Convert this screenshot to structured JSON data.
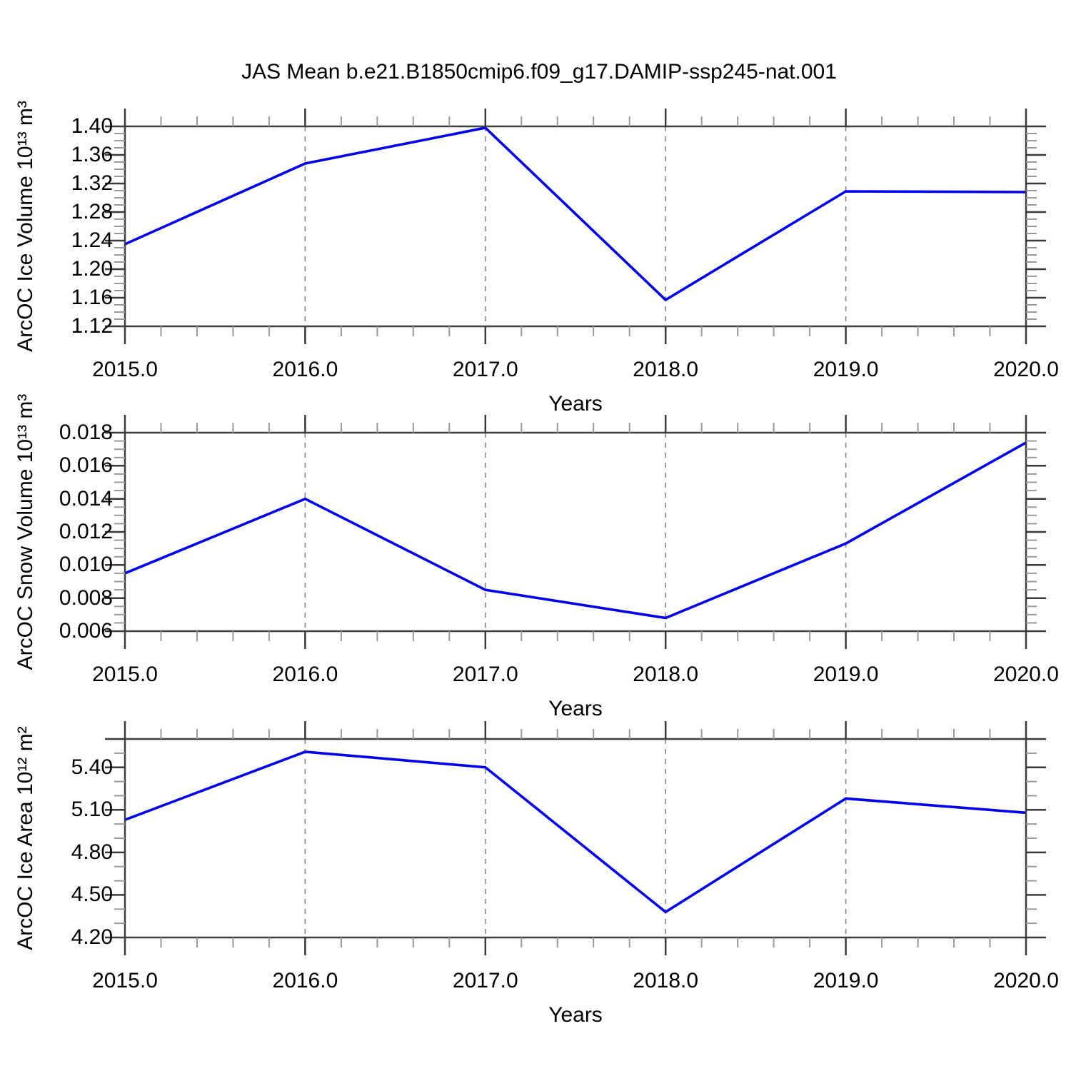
{
  "title": "JAS Mean b.e21.B1850cmip6.f09_g17.DAMIP-ssp245-nat.001",
  "line_color": "#0000f2",
  "chart_data": [
    {
      "type": "line",
      "ylabel": "ArcOC Ice Volume 10¹³ m³",
      "xlabel": "Years",
      "x": [
        2015,
        2016,
        2017,
        2018,
        2019,
        2020
      ],
      "values": [
        1.235,
        1.348,
        1.398,
        1.157,
        1.309,
        1.308
      ],
      "xlim": [
        2015,
        2020
      ],
      "ylim": [
        1.12,
        1.4
      ],
      "xtick_labels": [
        "2015.0",
        "2016.0",
        "2017.0",
        "2018.0",
        "2019.0",
        "2020.0"
      ],
      "ytick_labels": [
        "1.12",
        "1.16",
        "1.20",
        "1.24",
        "1.28",
        "1.32",
        "1.36",
        "1.40"
      ],
      "ytick_extra_unlabeled": [],
      "y_minor_step": 0.01,
      "x_minor_step": 0.2,
      "grid_years_dashed": [
        2016,
        2017,
        2018,
        2019
      ],
      "legend": "none",
      "grid": "vertical-dashed-only"
    },
    {
      "type": "line",
      "ylabel": "ArcOC Snow Volume 10¹³ m³",
      "xlabel": "Years",
      "x": [
        2015,
        2016,
        2017,
        2018,
        2019,
        2020
      ],
      "values": [
        0.0095,
        0.014,
        0.0085,
        0.0068,
        0.0113,
        0.0174
      ],
      "xlim": [
        2015,
        2020
      ],
      "ylim": [
        0.006,
        0.018
      ],
      "xtick_labels": [
        "2015.0",
        "2016.0",
        "2017.0",
        "2018.0",
        "2019.0",
        "2020.0"
      ],
      "ytick_labels": [
        "0.006",
        "0.008",
        "0.010",
        "0.012",
        "0.014",
        "0.016",
        "0.018"
      ],
      "ytick_extra_unlabeled": [],
      "y_minor_step": 0.0005,
      "x_minor_step": 0.2,
      "grid_years_dashed": [
        2016,
        2017,
        2018,
        2019
      ],
      "legend": "none",
      "grid": "vertical-dashed-only"
    },
    {
      "type": "line",
      "ylabel": "ArcOC Ice Area 10¹² m²",
      "xlabel": "Years",
      "x": [
        2015,
        2016,
        2017,
        2018,
        2019,
        2020
      ],
      "values": [
        5.03,
        5.51,
        5.4,
        4.38,
        5.18,
        5.08
      ],
      "xlim": [
        2015,
        2020
      ],
      "ylim": [
        4.2,
        5.6
      ],
      "xtick_labels": [
        "2015.0",
        "2016.0",
        "2017.0",
        "2018.0",
        "2019.0",
        "2020.0"
      ],
      "ytick_labels": [
        "4.20",
        "4.50",
        "4.80",
        "5.10",
        "5.40"
      ],
      "ytick_extra_unlabeled": [
        5.6
      ],
      "y_minor_step": 0.1,
      "x_minor_step": 0.2,
      "grid_years_dashed": [
        2016,
        2017,
        2018,
        2019
      ],
      "legend": "none",
      "grid": "vertical-dashed-only"
    }
  ]
}
